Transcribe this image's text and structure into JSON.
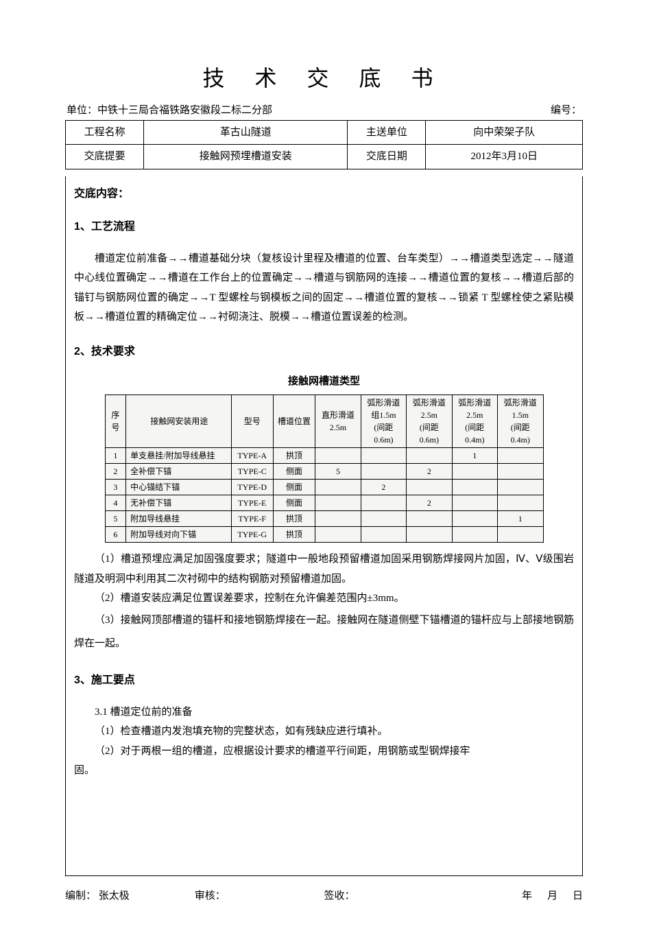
{
  "title": "技 术 交 底 书",
  "header": {
    "unit_label": "单位：",
    "unit_value": "中铁十三局合福铁路安徽段二标二分部",
    "number_label": "编号：",
    "number_value": ""
  },
  "info": {
    "project_label": "工程名称",
    "project_value": "革古山隧道",
    "sendto_label": "主送单位",
    "sendto_value": "向中荣架子队",
    "summary_label": "交底提要",
    "summary_value": "接触网预埋槽道安装",
    "date_label": "交底日期",
    "date_value": "2012年3月10日"
  },
  "content_label": "交底内容：",
  "s1": {
    "heading": "1、工艺流程",
    "para": "槽道定位前准备→→槽道基础分块（复核设计里程及槽道的位置、台车类型）→→槽道类型选定→→隧道中心线位置确定→→槽道在工作台上的位置确定→→槽道与钢筋网的连接→→槽道位置的复核→→槽道后部的锚钉与钢筋网位置的确定→→T 型螺栓与钢模板之间的固定→→槽道位置的复核→→锁紧 T 型螺栓使之紧贴模板→→槽道位置的精确定位→→衬砌浇注、脱模→→槽道位置误差的检测。"
  },
  "s2": {
    "heading": "2、技术要求",
    "table_caption": "接触网槽道类型",
    "cols": {
      "seq": "序号",
      "use": "接触网安装用途",
      "model": "型号",
      "pos": "槽道位置",
      "c1": "直形滑道\n2.5m",
      "c2": "弧形滑道\n组1.5m\n(间距\n0.6m)",
      "c3": "弧形滑道\n2.5m\n(间距\n0.6m)",
      "c4": "弧形滑道\n2.5m\n(间距\n0.4m)",
      "c5": "弧形滑道\n1.5m\n(间距\n0.4m)"
    },
    "rows": [
      {
        "seq": "1",
        "use": "单支悬挂/附加导线悬挂",
        "model": "TYPE-A",
        "pos": "拱顶",
        "c1": "",
        "c2": "",
        "c3": "",
        "c4": "1",
        "c5": ""
      },
      {
        "seq": "2",
        "use": "全补偿下锚",
        "model": "TYPE-C",
        "pos": "侧面",
        "c1": "5",
        "c2": "",
        "c3": "2",
        "c4": "",
        "c5": ""
      },
      {
        "seq": "3",
        "use": "中心锚结下锚",
        "model": "TYPE-D",
        "pos": "侧面",
        "c1": "",
        "c2": "2",
        "c3": "",
        "c4": "",
        "c5": ""
      },
      {
        "seq": "4",
        "use": "无补偿下锚",
        "model": "TYPE-E",
        "pos": "侧面",
        "c1": "",
        "c2": "",
        "c3": "2",
        "c4": "",
        "c5": ""
      },
      {
        "seq": "5",
        "use": "附加导线悬挂",
        "model": "TYPE-F",
        "pos": "拱顶",
        "c1": "",
        "c2": "",
        "c3": "",
        "c4": "",
        "c5": "1"
      },
      {
        "seq": "6",
        "use": "附加导线对向下锚",
        "model": "TYPE-G",
        "pos": "拱顶",
        "c1": "",
        "c2": "",
        "c3": "",
        "c4": "",
        "c5": ""
      }
    ],
    "p1": "（1）槽道预埋应满足加固强度要求；隧道中一般地段预留槽道加固采用钢筋焊接网片加固，Ⅳ、Ⅴ级围岩隧道及明洞中利用其二次衬砌中的结构钢筋对预留槽道加固。",
    "p2": "（2）槽道安装应满足位置误差要求，控制在允许偏差范围内±3mm。",
    "p3": "（3）接触网顶部槽道的锚杆和接地钢筋焊接在一起。接触网在隧道侧壁下锚槽道的锚杆应与上部接地钢筋焊在一起。"
  },
  "s3": {
    "heading": "3、施工要点",
    "sub31": "3.1 槽道定位前的准备",
    "p1": "（1）检查槽道内发泡填充物的完整状态，如有残缺应进行填补。",
    "p2": "（2）对于两根一组的槽道，应根据设计要求的槽道平行间距，用钢筋或型钢焊接牢",
    "p2b": "固。"
  },
  "footer": {
    "compile_label": "编制：",
    "compile_value": "张太极",
    "review_label": "审核：",
    "sign_label": "签收：",
    "y": "年",
    "m": "月",
    "d": "日"
  }
}
